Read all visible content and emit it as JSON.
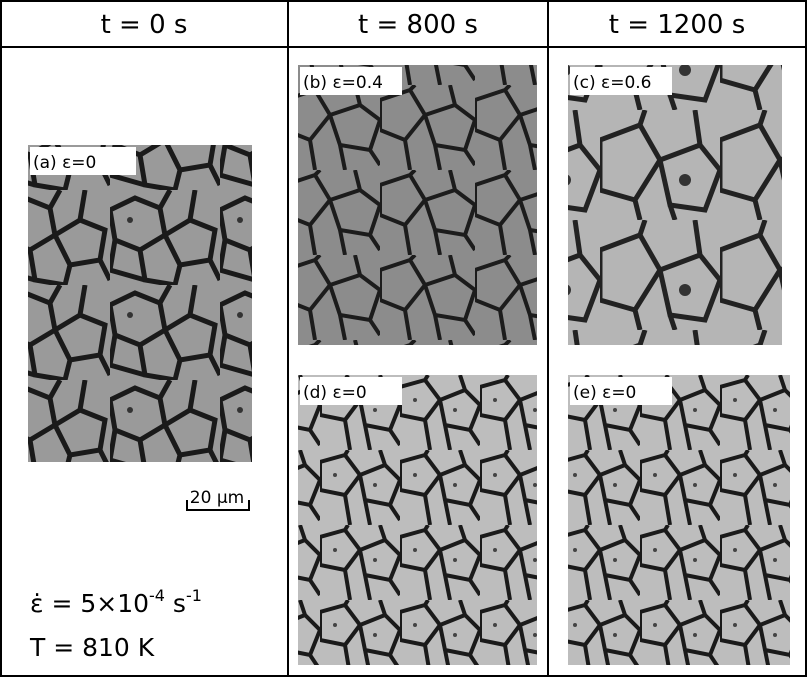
{
  "header": {
    "columns": [
      "t = 0 s",
      "t = 800 s",
      "t = 1200 s"
    ]
  },
  "panels": [
    {
      "label": "(a) ε=0"
    },
    {
      "label": "(b) ε=0.4"
    },
    {
      "label": "(c) ε=0.6"
    },
    {
      "label": "(d) ε=0"
    },
    {
      "label": "(e) ε=0"
    }
  ],
  "scale_bar": "20 μm",
  "conditions": {
    "strain_rate": {
      "base": "ε̇ = 5×10",
      "exp": "-4",
      "unit": " s",
      "unit_exp": "-1"
    },
    "temperature": "T = 810 K"
  }
}
